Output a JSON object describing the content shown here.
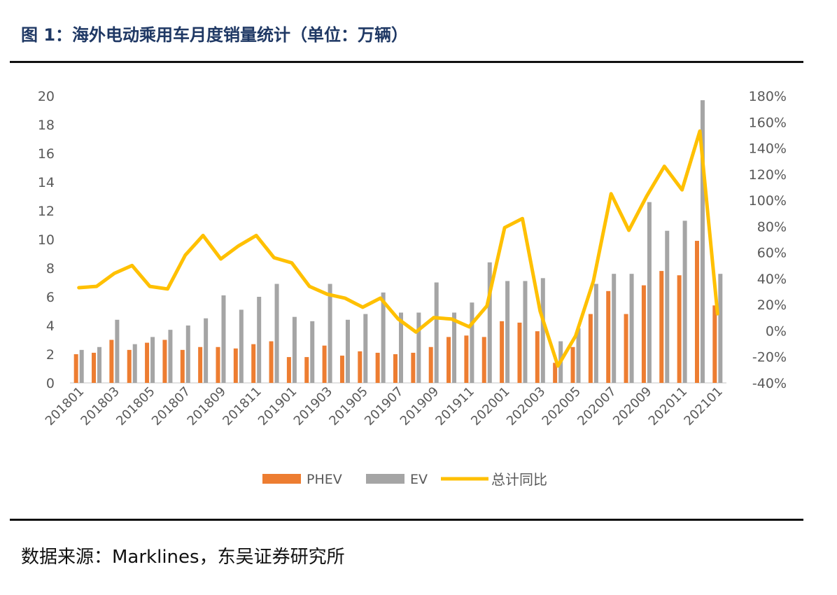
{
  "title": "图 1：海外电动乘用车月度销量统计（单位：万辆）",
  "source": "数据来源：Marklines，东吴证券研究所",
  "colors": {
    "phev": "#ed7d31",
    "ev": "#a5a5a5",
    "yoy": "#ffc000",
    "title": "#1f3864"
  },
  "chart_data": {
    "type": "bar",
    "x": [
      "201801",
      "201802",
      "201803",
      "201804",
      "201805",
      "201806",
      "201807",
      "201808",
      "201809",
      "201810",
      "201811",
      "201812",
      "201901",
      "201902",
      "201903",
      "201904",
      "201905",
      "201906",
      "201907",
      "201908",
      "201909",
      "201910",
      "201911",
      "201912",
      "202001",
      "202002",
      "202003",
      "202004",
      "202005",
      "202006",
      "202007",
      "202008",
      "202009",
      "202010",
      "202011",
      "202012",
      "202101"
    ],
    "x_tick_labels": [
      "201801",
      "201803",
      "201805",
      "201807",
      "201809",
      "201811",
      "201901",
      "201903",
      "201905",
      "201907",
      "201909",
      "201911",
      "202001",
      "202003",
      "202005",
      "202007",
      "202009",
      "202011",
      "202101"
    ],
    "series": [
      {
        "name": "PHEV",
        "type": "bar",
        "axis": "left",
        "values": [
          2.0,
          2.1,
          3.0,
          2.3,
          2.8,
          3.0,
          2.3,
          2.5,
          2.5,
          2.4,
          2.7,
          2.9,
          1.8,
          1.8,
          2.6,
          1.9,
          2.2,
          2.1,
          2.0,
          2.1,
          2.5,
          3.2,
          3.3,
          3.2,
          4.3,
          4.2,
          3.6,
          1.4,
          2.5,
          4.8,
          6.4,
          4.8,
          6.8,
          7.8,
          7.5,
          9.9,
          5.4
        ]
      },
      {
        "name": "EV",
        "type": "bar",
        "axis": "left",
        "values": [
          2.3,
          2.5,
          4.4,
          2.7,
          3.2,
          3.7,
          4.0,
          4.5,
          6.1,
          5.1,
          6.0,
          6.9,
          4.6,
          4.3,
          6.9,
          4.4,
          4.8,
          6.3,
          4.9,
          4.9,
          7.0,
          4.9,
          5.6,
          8.4,
          7.1,
          7.1,
          7.3,
          2.9,
          3.8,
          6.9,
          7.6,
          7.6,
          12.6,
          10.6,
          11.3,
          19.7,
          7.6
        ]
      },
      {
        "name": "总计同比",
        "type": "line",
        "axis": "right",
        "values": [
          33,
          34,
          44,
          50,
          34,
          32,
          58,
          73,
          55,
          65,
          73,
          56,
          52,
          34,
          28,
          25,
          18,
          25,
          9,
          -1,
          10,
          9,
          3,
          19,
          79,
          86,
          15,
          -27,
          -4,
          38,
          105,
          77,
          103,
          126,
          108,
          153,
          13
        ]
      }
    ],
    "y_left": {
      "ticks": [
        0,
        2,
        4,
        6,
        8,
        10,
        12,
        14,
        16,
        18,
        20
      ],
      "ylim": [
        0,
        20
      ]
    },
    "y_right": {
      "ticks": [
        "-40%",
        "-20%",
        "0%",
        "20%",
        "40%",
        "60%",
        "80%",
        "100%",
        "120%",
        "140%",
        "160%",
        "180%"
      ],
      "ylim": [
        -40,
        180
      ]
    },
    "legend": {
      "position": "bottom",
      "items": [
        "PHEV",
        "EV",
        "总计同比"
      ]
    },
    "grid": false
  }
}
